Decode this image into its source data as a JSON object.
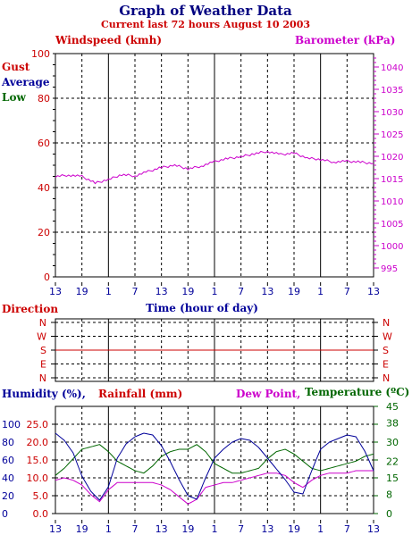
{
  "title": "Graph of Weather Data",
  "subtitle": "Current last 72 hours August 10 2003",
  "colors": {
    "windspeed": "#cc0000",
    "gust": "#cc0000",
    "average": "#000099",
    "low": "#006600",
    "barometer": "#cc00cc",
    "humidity": "#000099",
    "rainfall": "#cc0000",
    "dew_point": "#cc00cc",
    "temperature": "#006600",
    "direction": "#cc0000",
    "axis": "#000000"
  },
  "x_axis_label": "Time (hour of day)",
  "x_tick_labels": [
    "13",
    "19",
    "1",
    "7",
    "13",
    "19",
    "1",
    "7",
    "13",
    "19",
    "1",
    "7",
    "13"
  ],
  "panel_top": {
    "left_label": "Windspeed (kmh)",
    "right_label": "Barometer (kPa)",
    "legend": [
      "Gust",
      "Average",
      "Low"
    ],
    "left_ticks": [
      "0",
      "20",
      "40",
      "60",
      "80",
      "100"
    ],
    "right_ticks": [
      "995",
      "1000",
      "1005",
      "1010",
      "1015",
      "1020",
      "1025",
      "1030",
      "1035",
      "1040"
    ]
  },
  "panel_mid": {
    "label": "Direction",
    "ticks": [
      "N",
      "W",
      "S",
      "E",
      "N"
    ]
  },
  "panel_bottom": {
    "labels": {
      "humidity": "Humidity (%),",
      "rainfall": "Rainfall (mm)",
      "dew_point": "Dew Point,",
      "temperature": "Temperature (ºC)"
    },
    "humidity_ticks": [
      "0",
      "20",
      "40",
      "60",
      "80",
      "100"
    ],
    "rainfall_ticks": [
      "0.0",
      "5.0",
      "10.0",
      "15.0",
      "20.0",
      "25.0"
    ],
    "temp_ticks": [
      "0",
      "8",
      "15",
      "22",
      "30",
      "38",
      "45"
    ]
  },
  "chart_data": [
    {
      "type": "line",
      "title": "Windspeed (kmh) / Barometer (kPa)",
      "xlabel": "Time (hour of day)",
      "x": [
        0,
        3,
        6,
        9,
        12,
        15,
        18,
        21,
        24,
        27,
        30,
        33,
        36,
        39,
        42,
        45,
        48,
        51,
        54,
        57,
        60,
        63,
        66,
        69,
        72
      ],
      "ylim_left": [
        0,
        100
      ],
      "ylim_right": [
        993,
        1043
      ],
      "series": [
        {
          "name": "Barometer",
          "axis": "right",
          "values": [
            1015.5,
            1015.8,
            1015.5,
            1014.0,
            1014.8,
            1015.9,
            1015.6,
            1016.6,
            1017.5,
            1018.0,
            1017.2,
            1017.8,
            1018.8,
            1019.5,
            1019.9,
            1020.6,
            1021.1,
            1020.4,
            1020.7,
            1019.6,
            1019.3,
            1018.7,
            1018.9,
            1018.7,
            1018.4
          ]
        }
      ]
    },
    {
      "type": "line",
      "title": "Direction",
      "xlabel": "Time (hour of day)",
      "y_categories": [
        "N",
        "W",
        "S",
        "E",
        "N"
      ],
      "series": [
        {
          "name": "Direction",
          "values": [
            "S",
            "S",
            "S",
            "S",
            "S"
          ]
        }
      ]
    },
    {
      "type": "line",
      "title": "Humidity / Rainfall / Dew Point / Temperature",
      "xlabel": "Time (hour of day)",
      "x": [
        0,
        2,
        4,
        6,
        8,
        10,
        12,
        14,
        16,
        18,
        20,
        22,
        24,
        26,
        28,
        30,
        32,
        34,
        36,
        38,
        40,
        42,
        44,
        46,
        48,
        50,
        52,
        54,
        56,
        58,
        60,
        62,
        64,
        66,
        68,
        70,
        72
      ],
      "ylim_humidity": [
        0,
        100
      ],
      "ylim_temperature": [
        0,
        45
      ],
      "series": [
        {
          "name": "Humidity",
          "unit": "%",
          "values": [
            90,
            82,
            68,
            42,
            25,
            15,
            30,
            62,
            78,
            86,
            90,
            88,
            76,
            58,
            38,
            20,
            16,
            40,
            62,
            72,
            80,
            84,
            82,
            74,
            62,
            50,
            38,
            24,
            22,
            48,
            72,
            80,
            84,
            88,
            86,
            70,
            48
          ]
        },
        {
          "name": "Temperature",
          "unit": "ºC",
          "values": [
            16,
            19,
            23,
            27,
            28,
            29,
            26,
            22,
            20,
            18,
            17,
            20,
            24,
            26,
            27,
            27,
            29,
            26,
            21,
            19,
            17,
            17,
            18,
            19,
            23,
            26,
            27,
            25,
            22,
            19,
            18,
            19,
            20,
            21,
            22,
            24,
            25
          ]
        },
        {
          "name": "Dew Point",
          "unit": "ºC",
          "values": [
            14,
            15,
            14,
            12,
            8,
            5,
            10,
            13,
            13,
            13,
            13,
            13,
            12,
            10,
            7,
            4,
            6,
            11,
            12,
            13,
            13,
            14,
            15,
            16,
            17,
            17,
            16,
            13,
            11,
            14,
            16,
            17,
            17,
            17,
            18,
            18,
            18
          ]
        }
      ]
    }
  ]
}
